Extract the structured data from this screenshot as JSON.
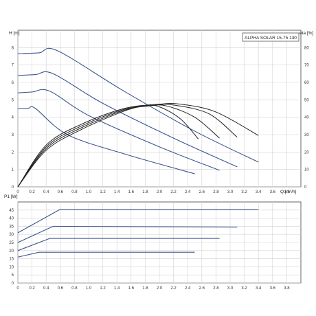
{
  "chart_data": [
    {
      "type": "line",
      "title": "ALPHA SOLAR 15-75  130",
      "xlabel": "Q [m³/h]",
      "ylabel": "H [m]",
      "ylabel_right": "eta [%]",
      "xlim": [
        0,
        4.0
      ],
      "ylim": [
        0,
        9
      ],
      "ylim_right": [
        0,
        90
      ],
      "x_ticks": [
        "0",
        "0.2",
        "0.4",
        "0.6",
        "0.8",
        "1.0",
        "1.2",
        "1.4",
        "1.6",
        "1.8",
        "2.0",
        "2.2",
        "2.4",
        "2.6",
        "2.8",
        "3.0",
        "3.2",
        "3.4",
        "3.6",
        "3.8"
      ],
      "x_tick_values": [
        0,
        0.2,
        0.4,
        0.6,
        0.8,
        1.0,
        1.2,
        1.4,
        1.6,
        1.8,
        2.0,
        2.2,
        2.4,
        2.6,
        2.8,
        3.0,
        3.2,
        3.4,
        3.6,
        3.8
      ],
      "y_ticks": [
        "0",
        "1",
        "2",
        "3",
        "4",
        "5",
        "6",
        "7",
        "8"
      ],
      "y_tick_values": [
        0,
        1,
        2,
        3,
        4,
        5,
        6,
        7,
        8
      ],
      "y_ticks_right": [
        "0",
        "10",
        "20",
        "30",
        "40",
        "50",
        "60",
        "70",
        "80"
      ],
      "y_tick_values_right": [
        0,
        10,
        20,
        30,
        40,
        50,
        60,
        70,
        80
      ],
      "grid": true,
      "axis_label_x_position": "right end of x-axis",
      "series": [
        {
          "kind": "head",
          "color": "#3a5590",
          "x": [
            0,
            0.3,
            0.56,
            1.5,
            2.5,
            3.4
          ],
          "y": [
            7.65,
            7.7,
            7.82,
            5.5,
            3.2,
            1.42
          ]
        },
        {
          "kind": "head",
          "color": "#3a5590",
          "x": [
            0,
            0.25,
            0.5,
            1.2,
            2.2,
            3.1
          ],
          "y": [
            6.4,
            6.45,
            6.5,
            4.8,
            2.8,
            1.15
          ]
        },
        {
          "kind": "head",
          "color": "#3a5590",
          "x": [
            0,
            0.2,
            0.45,
            1.0,
            2.0,
            2.85
          ],
          "y": [
            5.4,
            5.45,
            5.5,
            4.1,
            2.3,
            0.95
          ]
        },
        {
          "kind": "head",
          "color": "#3a5590",
          "x": [
            0,
            0.15,
            0.25,
            0.7,
            1.5,
            2.5
          ],
          "y": [
            4.5,
            4.52,
            4.5,
            3.0,
            1.9,
            0.75
          ]
        },
        {
          "kind": "efficiency",
          "color": "#222222",
          "x": [
            0,
            0.4,
            0.9,
            1.5,
            2.0,
            2.3,
            2.8,
            3.4
          ],
          "y": [
            0,
            24,
            36,
            45,
            47.5,
            47.5,
            43,
            29.5
          ]
        },
        {
          "kind": "efficiency",
          "color": "#222222",
          "x": [
            0,
            0.4,
            0.9,
            1.5,
            1.95,
            2.2,
            2.7,
            3.1
          ],
          "y": [
            0,
            23,
            35,
            44.5,
            47,
            47,
            42,
            28.5
          ]
        },
        {
          "kind": "efficiency",
          "color": "#222222",
          "x": [
            0,
            0.4,
            0.9,
            1.5,
            1.85,
            2.1,
            2.5,
            2.85
          ],
          "y": [
            0,
            22,
            34,
            44,
            46.5,
            46.5,
            40,
            28
          ]
        },
        {
          "kind": "efficiency",
          "color": "#222222",
          "x": [
            0,
            0.4,
            0.9,
            1.5,
            1.8,
            2.0,
            2.3,
            2.55
          ],
          "y": [
            0,
            21,
            33,
            43.5,
            46.5,
            46,
            39,
            27.5
          ]
        }
      ]
    },
    {
      "type": "line",
      "title": "",
      "xlabel": "",
      "ylabel": "P1 [W]",
      "xlim": [
        0,
        4.0
      ],
      "ylim": [
        0,
        50
      ],
      "x_ticks": [
        "0",
        "0.2",
        "0.4",
        "0.6",
        "0.8",
        "1.0",
        "1.2",
        "1.4",
        "1.6",
        "1.8",
        "2.0",
        "2.2",
        "2.4",
        "2.6",
        "2.8",
        "3.0",
        "3.2",
        "3.4",
        "3.6",
        "3.8"
      ],
      "x_tick_values": [
        0,
        0.2,
        0.4,
        0.6,
        0.8,
        1.0,
        1.2,
        1.4,
        1.6,
        1.8,
        2.0,
        2.2,
        2.4,
        2.6,
        2.8,
        3.0,
        3.2,
        3.4,
        3.6,
        3.8
      ],
      "y_ticks": [
        "0",
        "5",
        "10",
        "15",
        "20",
        "25",
        "30",
        "35",
        "40",
        "45"
      ],
      "y_tick_values": [
        0,
        5,
        10,
        15,
        20,
        25,
        30,
        35,
        40,
        45
      ],
      "grid": true,
      "series": [
        {
          "color": "#3a5590",
          "x": [
            0,
            0.6,
            3.4
          ],
          "y": [
            31,
            45.5,
            45.5
          ]
        },
        {
          "color": "#3a5590",
          "x": [
            0,
            0.5,
            3.1
          ],
          "y": [
            25,
            35,
            34.5
          ]
        },
        {
          "color": "#3a5590",
          "x": [
            0,
            0.45,
            2.85
          ],
          "y": [
            20,
            27.5,
            27.5
          ]
        },
        {
          "color": "#3a5590",
          "x": [
            0,
            0.3,
            2.5
          ],
          "y": [
            16,
            19,
            19
          ]
        }
      ]
    }
  ]
}
